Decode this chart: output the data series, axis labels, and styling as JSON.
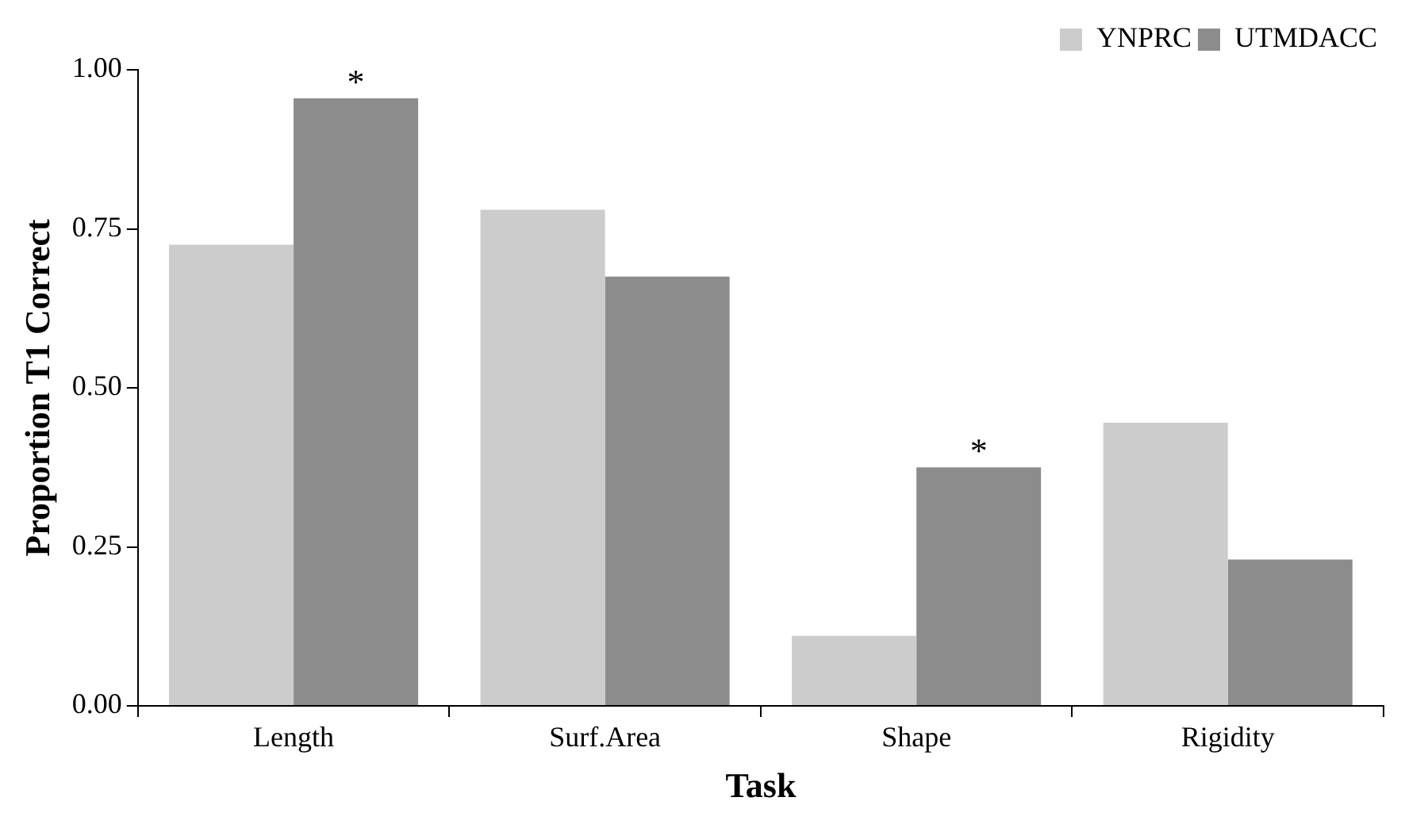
{
  "chart_data": {
    "type": "bar",
    "xlabel": "Task",
    "ylabel": "Proportion T1 Correct",
    "categories": [
      "Length",
      "Surf.Area",
      "Shape",
      "Rigidity"
    ],
    "series": [
      {
        "name": "YNPRC",
        "color": "#cccccc",
        "values": [
          0.725,
          0.78,
          0.11,
          0.445
        ]
      },
      {
        "name": "UTMDACC",
        "color": "#8c8c8c",
        "values": [
          0.955,
          0.675,
          0.375,
          0.23
        ]
      }
    ],
    "ylim": [
      0,
      1
    ],
    "yticks": [
      {
        "value": 0,
        "label": "0.00"
      },
      {
        "value": 0.25,
        "label": "0.25"
      },
      {
        "value": 0.5,
        "label": "0.50"
      },
      {
        "value": 0.75,
        "label": "0.75"
      },
      {
        "value": 1,
        "label": "1.00"
      }
    ],
    "annotations": [
      {
        "text": "*",
        "x": "Length",
        "y": 0.955
      },
      {
        "text": "*",
        "x": "Shape",
        "y": 0.375
      }
    ],
    "grid": false,
    "legend": "top right"
  }
}
